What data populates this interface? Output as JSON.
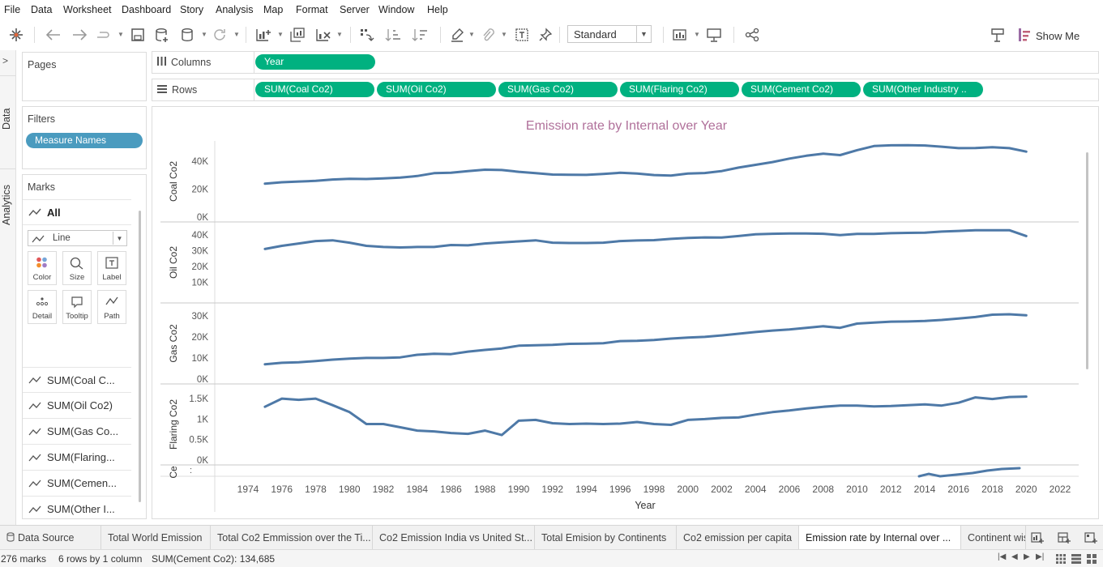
{
  "menu": [
    "File",
    "Data",
    "Worksheet",
    "Dashboard",
    "Story",
    "Analysis",
    "Map",
    "Format",
    "Server",
    "Window",
    "Help"
  ],
  "toolbar": {
    "fit_value": "Standard",
    "show_me": "Show Me",
    "icons": [
      "tableau-logo-icon",
      "back-icon",
      "forward-icon",
      "redo-icon",
      "save-icon",
      "new-datasource-icon",
      "datasource-icon",
      "refresh-icon",
      "new-worksheet-icon",
      "duplicate-sheet-icon",
      "clear-sheet-icon",
      "swap-icon",
      "sort-ascending-icon",
      "sort-descending-icon",
      "highlight-icon",
      "group-icon",
      "label-icon",
      "pin-icon",
      "show-cards-icon",
      "presentation-icon",
      "share-icon",
      "show-me-icon"
    ]
  },
  "side_tabs": {
    "data": "Data",
    "analytics": "Analytics"
  },
  "pages": {
    "title": "Pages"
  },
  "filters": {
    "title": "Filters",
    "pill": "Measure Names"
  },
  "marks": {
    "title": "Marks",
    "all_label": "All",
    "mark_type": "Line",
    "cards": [
      {
        "label": "Color",
        "icon": "color-dots-icon"
      },
      {
        "label": "Size",
        "icon": "size-icon"
      },
      {
        "label": "Label",
        "icon": "label-icon"
      },
      {
        "label": "Detail",
        "icon": "detail-icon"
      },
      {
        "label": "Tooltip",
        "icon": "tooltip-icon"
      },
      {
        "label": "Path",
        "icon": "path-icon"
      }
    ],
    "measures": [
      "SUM(Coal C...",
      "SUM(Oil Co2)",
      "SUM(Gas Co...",
      "SUM(Flaring...",
      "SUM(Cemen...",
      "SUM(Other I..."
    ]
  },
  "columns": {
    "label": "Columns",
    "pills": [
      "Year"
    ]
  },
  "rows": {
    "label": "Rows",
    "pills": [
      "SUM(Coal Co2)",
      "SUM(Oil Co2)",
      "SUM(Gas Co2)",
      "SUM(Flaring Co2)",
      "SUM(Cement Co2)",
      "SUM(Other Industry .."
    ]
  },
  "chart_data": {
    "type": "line",
    "title": "Emission rate by Internal over Year",
    "xlabel": "Year",
    "x_ticks": [
      "1974",
      "1976",
      "1978",
      "1980",
      "1982",
      "1984",
      "1986",
      "1988",
      "1990",
      "1992",
      "1994",
      "1996",
      "1998",
      "2000",
      "2002",
      "2004",
      "2006",
      "2008",
      "2010",
      "2012",
      "2014",
      "2016",
      "2018",
      "2020",
      "2022"
    ],
    "x": [
      1975,
      1976,
      1977,
      1978,
      1979,
      1980,
      1981,
      1982,
      1983,
      1984,
      1985,
      1986,
      1987,
      1988,
      1989,
      1990,
      1991,
      1992,
      1993,
      1994,
      1995,
      1996,
      1997,
      1998,
      1999,
      2000,
      2001,
      2002,
      2003,
      2004,
      2005,
      2006,
      2007,
      2008,
      2009,
      2010,
      2011,
      2012,
      2013,
      2014,
      2015,
      2016,
      2017,
      2018,
      2019,
      2020
    ],
    "line_color": "#4e79a7",
    "panes": [
      {
        "ylabel": "Coal Co2",
        "yticks": [
          "40K",
          "20K",
          "0K"
        ],
        "ylim": [
          0,
          50000
        ],
        "values": [
          24000,
          25000,
          25500,
          26000,
          27000,
          27500,
          27300,
          27800,
          28300,
          29500,
          31500,
          31800,
          33000,
          34000,
          33800,
          32500,
          31500,
          30500,
          30400,
          30300,
          31000,
          31800,
          31200,
          30200,
          29800,
          31300,
          31600,
          33000,
          35500,
          37500,
          39500,
          42000,
          44000,
          45500,
          44500,
          48000,
          51000,
          51500,
          51600,
          51400,
          50500,
          49500,
          49600,
          50200,
          49500,
          47000
        ]
      },
      {
        "ylabel": "Oil Co2",
        "yticks": [
          "40K",
          "30K",
          "20K",
          "10K"
        ],
        "ylim": [
          0,
          44000
        ],
        "values": [
          31000,
          33000,
          34500,
          36000,
          36500,
          35000,
          33000,
          32300,
          32000,
          32300,
          32300,
          33500,
          33300,
          34500,
          35200,
          35800,
          36500,
          35000,
          34800,
          34800,
          35000,
          36000,
          36400,
          36600,
          37400,
          38000,
          38300,
          38200,
          39200,
          40300,
          40600,
          40800,
          40800,
          40600,
          39800,
          40500,
          40500,
          41000,
          41200,
          41300,
          42000,
          42400,
          42800,
          42800,
          42900,
          39200
        ]
      },
      {
        "ylabel": "Gas Co2",
        "yticks": [
          "30K",
          "20K",
          "10K",
          "0K"
        ],
        "ylim": [
          0,
          33000
        ],
        "values": [
          7000,
          7700,
          8000,
          8500,
          9200,
          9700,
          10000,
          10000,
          10300,
          11500,
          12000,
          11800,
          13000,
          13800,
          14500,
          15800,
          16000,
          16200,
          16700,
          16800,
          17000,
          18000,
          18100,
          18500,
          19200,
          19700,
          20000,
          20700,
          21500,
          22300,
          23000,
          23500,
          24300,
          25000,
          24300,
          26300,
          26800,
          27200,
          27300,
          27500,
          28000,
          28700,
          29400,
          30500,
          30700,
          30200
        ]
      },
      {
        "ylabel": "Flaring Co2",
        "yticks": [
          "1.5K",
          "1K",
          "0.5K",
          "0K"
        ],
        "ylim": [
          0,
          1700
        ],
        "values": [
          1300,
          1500,
          1470,
          1500,
          1340,
          1170,
          880,
          880,
          800,
          720,
          700,
          660,
          640,
          720,
          610,
          960,
          980,
          900,
          880,
          890,
          880,
          890,
          930,
          880,
          860,
          980,
          1000,
          1030,
          1040,
          1110,
          1170,
          1210,
          1260,
          1300,
          1330,
          1330,
          1310,
          1320,
          1340,
          1360,
          1330,
          1400,
          1530,
          1490,
          1540,
          1550
        ]
      },
      {
        "ylabel": "Ce",
        "yticks": [
          ":"
        ],
        "partial": true
      }
    ]
  },
  "sheet_tabs": [
    "Data Source",
    "Total World Emission",
    "Total Co2 Emmission over the Ti...",
    "Co2 Emission India vs United St...",
    "Total Emision by Continents",
    "Co2 emission per capita",
    "Emission rate by Internal over ...",
    "Continent wis"
  ],
  "active_tab": 6,
  "status": {
    "marks": "276 marks",
    "grid": "6 rows by 1 column",
    "sum": "SUM(Cement Co2): 134,685"
  }
}
